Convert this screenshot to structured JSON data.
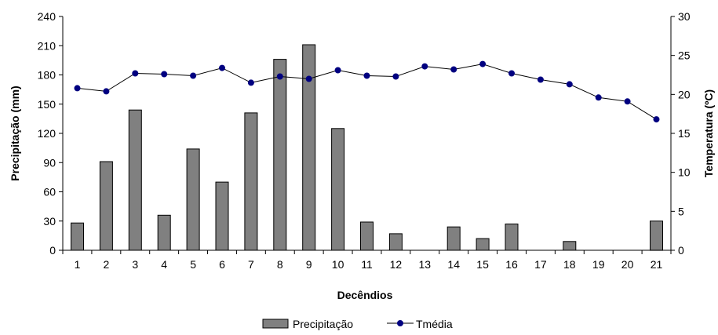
{
  "chart_data": {
    "type": "bar",
    "categories": [
      "1",
      "2",
      "3",
      "4",
      "5",
      "6",
      "7",
      "8",
      "9",
      "10",
      "11",
      "12",
      "13",
      "14",
      "15",
      "16",
      "17",
      "18",
      "19",
      "20",
      "21"
    ],
    "series": [
      {
        "name": "Precipitação",
        "type": "bar",
        "axis": "left",
        "color": "#808080",
        "values": [
          28,
          91,
          144,
          36,
          104,
          70,
          141,
          196,
          211,
          125,
          29,
          17,
          0,
          24,
          12,
          27,
          0,
          9,
          0,
          0,
          30
        ]
      },
      {
        "name": "Tmédia",
        "type": "line",
        "axis": "right",
        "color": "#000080",
        "values": [
          20.8,
          20.4,
          22.7,
          22.6,
          22.4,
          23.4,
          21.5,
          22.3,
          22.0,
          23.1,
          22.4,
          22.3,
          23.6,
          23.2,
          23.9,
          22.7,
          21.9,
          21.3,
          19.6,
          19.1,
          16.8
        ]
      }
    ],
    "xlabel": "Decêndios",
    "ylabel": "Precipitação (mm)",
    "y2label": "Temperatura (ºC)",
    "ylim": [
      0,
      240
    ],
    "yticks": [
      "0",
      "30",
      "60",
      "90",
      "120",
      "150",
      "180",
      "210",
      "240"
    ],
    "y2lim": [
      0,
      30
    ],
    "y2ticks": [
      "0",
      "5",
      "10",
      "15",
      "20",
      "25",
      "30"
    ],
    "grid": false,
    "legend": "bottom-center"
  }
}
